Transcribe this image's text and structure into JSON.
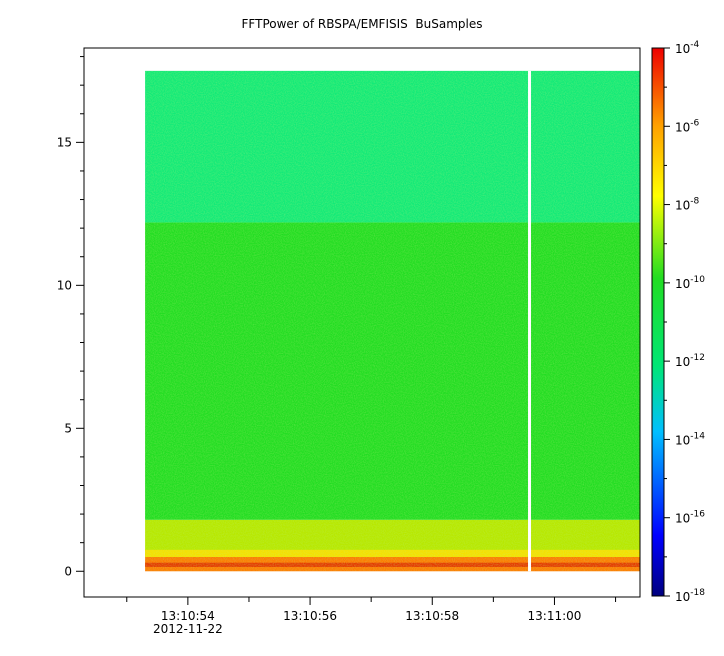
{
  "chart_data": {
    "type": "heatmap",
    "title": "FFTPower of RBSPA/EMFISIS  BuSamples",
    "xlabel": "",
    "ylabel": "",
    "x_range": [
      "13:10:52.3",
      "13:11:01.4"
    ],
    "data_start": "13:10:53.3",
    "data_end": "13:11:01.4",
    "gap_at": "13:10:59.6",
    "x_ticks": [
      "13:10:54",
      "13:10:56",
      "13:10:58",
      "13:11:00"
    ],
    "x_date_label": "2012-11-22",
    "ylim": [
      -0.9,
      18.3
    ],
    "data_y_top": 17.5,
    "y_ticks": [
      0,
      5,
      10,
      15
    ],
    "colorbar": {
      "scale": "log",
      "range": [
        1e-18,
        0.0001
      ],
      "tick_exponents": [
        -18,
        -16,
        -14,
        -12,
        -10,
        -8,
        -6,
        -4
      ],
      "tick_base": "10"
    },
    "features": [
      {
        "y_range": [
          0.0,
          0.5
        ],
        "level": "1e-7",
        "description": "strong low-frequency band"
      },
      {
        "y_range": [
          0.5,
          1.8
        ],
        "level": "1e-9"
      },
      {
        "y_range": [
          1.8,
          12.2
        ],
        "level": "1e-10"
      },
      {
        "y_range": [
          12.2,
          17.5
        ],
        "level": "1e-12"
      }
    ],
    "grid": false
  }
}
